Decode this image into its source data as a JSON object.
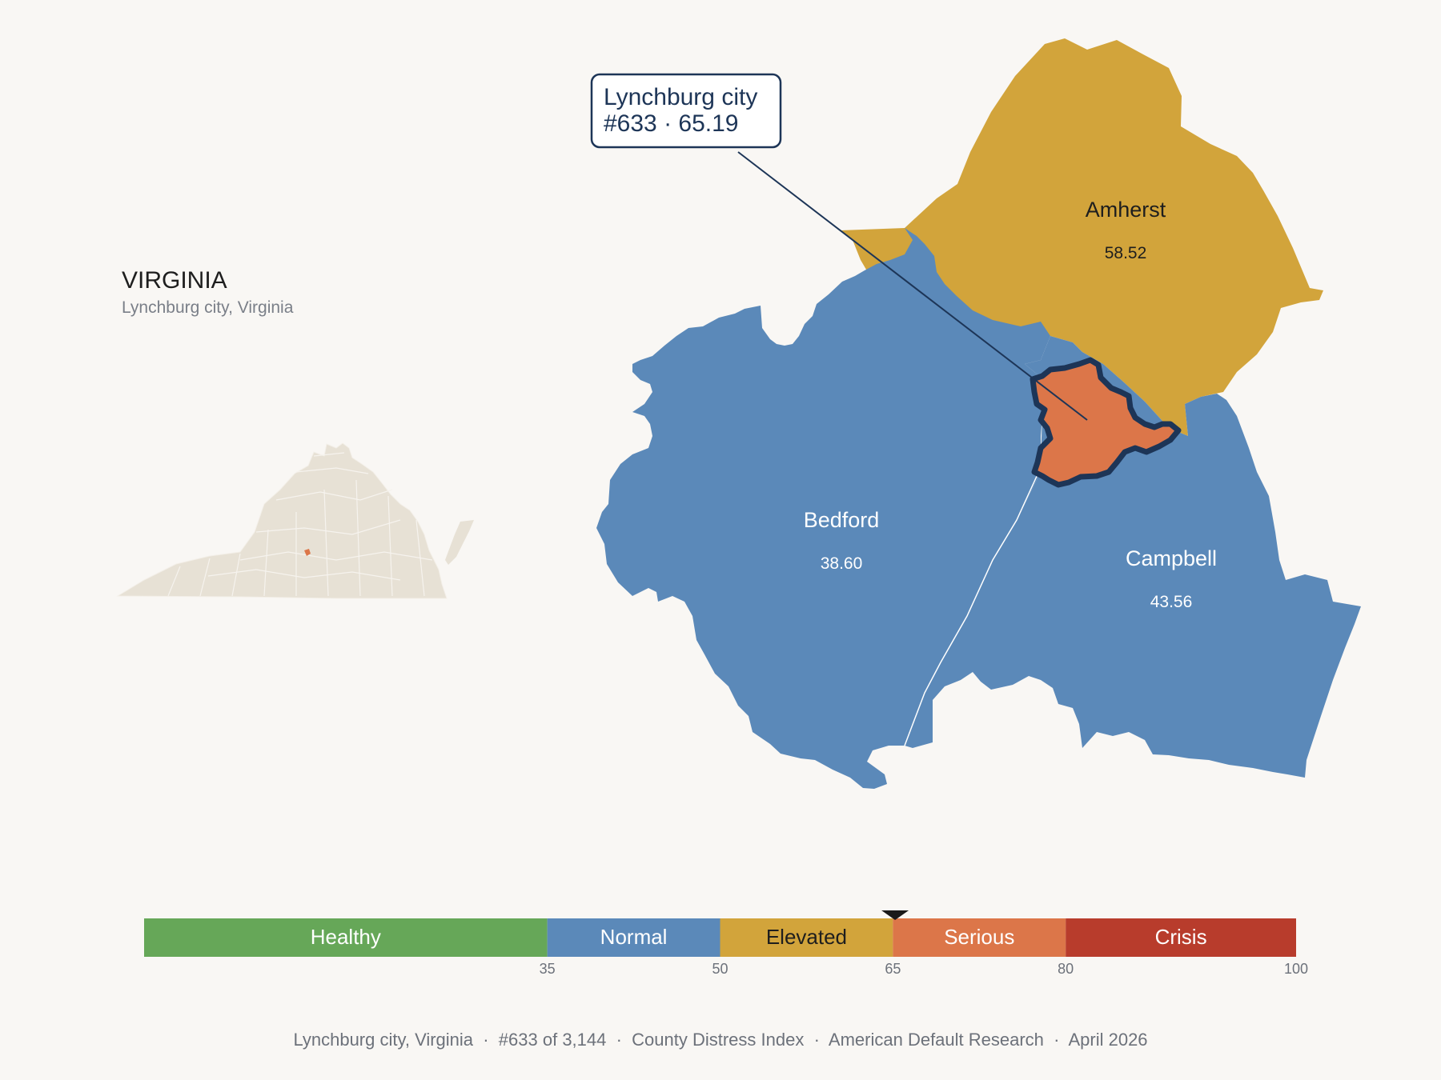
{
  "state": {
    "title": "VIRGINIA",
    "subtitle": "Lynchburg city, Virginia",
    "fill_color": "#e7e1d5",
    "highlight_color": "#dc7649"
  },
  "callout": {
    "line1": "Lynchburg city",
    "line2": "#633 · 65.19",
    "color": "#1d3557"
  },
  "counties": [
    {
      "name": "Amherst",
      "value": "58.52",
      "fill": "#d2a43b",
      "text_color": "#1e1e1e"
    },
    {
      "name": "Bedford",
      "value": "38.60",
      "fill": "#5b89b9",
      "text_color": "#ffffff"
    },
    {
      "name": "Campbell",
      "value": "43.56",
      "fill": "#5b89b9",
      "text_color": "#ffffff"
    },
    {
      "name": "Lynchburg city",
      "value": "65.19",
      "fill": "#dc7649",
      "outline": "#1d3557"
    }
  ],
  "legend": {
    "marker_value": 65.19,
    "segments": [
      {
        "label": "Healthy",
        "from": 0,
        "to": 35,
        "color": "#66a758",
        "text_color": "#ffffff"
      },
      {
        "label": "Normal",
        "from": 35,
        "to": 50,
        "color": "#5b89b9",
        "text_color": "#ffffff"
      },
      {
        "label": "Elevated",
        "from": 50,
        "to": 65,
        "color": "#d2a43b",
        "text_color": "#1e1e1e"
      },
      {
        "label": "Serious",
        "from": 65,
        "to": 80,
        "color": "#dc7649",
        "text_color": "#ffffff"
      },
      {
        "label": "Crisis",
        "from": 80,
        "to": 100,
        "color": "#b83c2c",
        "text_color": "#ffffff"
      }
    ],
    "ticks": [
      "35",
      "50",
      "65",
      "80",
      "100"
    ]
  },
  "footer": {
    "text": "Lynchburg city, Virginia  ·  #633 of 3,144  ·  County Distress Index  ·  American Default Research  ·  April 2026"
  }
}
